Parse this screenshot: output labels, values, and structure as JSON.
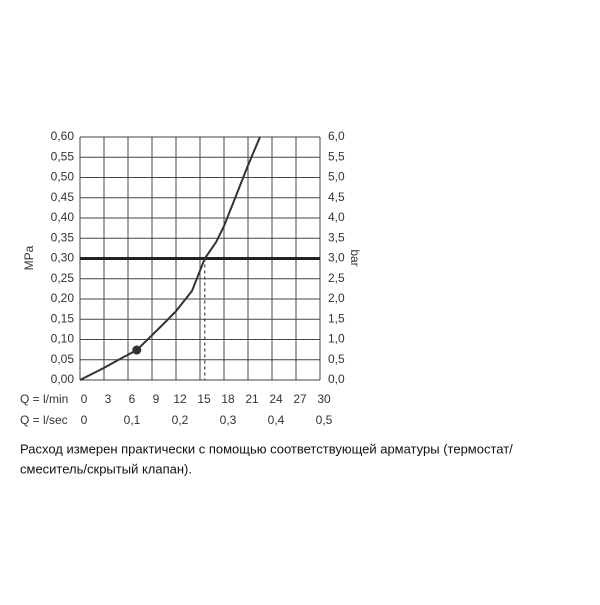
{
  "chart_data": {
    "type": "line",
    "y_label": "MPa",
    "y2_label": "bar",
    "x_label": "Q = l/min",
    "x2_label": "Q = l/sec",
    "x": [
      0,
      3,
      5,
      7.1,
      10,
      12,
      14,
      15.6,
      17,
      18,
      19,
      20,
      21,
      22.5
    ],
    "values": [
      0,
      0.03,
      0.052,
      0.074,
      0.13,
      0.17,
      0.22,
      0.3,
      0.34,
      0.38,
      0.43,
      0.48,
      0.53,
      0.6
    ],
    "color": "#333333",
    "marker": {
      "x": 7.1,
      "y": 0.074
    },
    "reference_y": 0.3,
    "reference_x": 15.6,
    "xlim": [
      0,
      30
    ],
    "xticks": [
      0,
      3,
      6,
      9,
      12,
      15,
      18,
      21,
      24,
      27,
      30
    ],
    "x2ticks": [
      {
        "value": 0,
        "label": "0"
      },
      {
        "value": 6,
        "label": "0,1"
      },
      {
        "value": 12,
        "label": "0,2"
      },
      {
        "value": 18,
        "label": "0,3"
      },
      {
        "value": 24,
        "label": "0,4"
      },
      {
        "value": 30,
        "label": "0,5"
      }
    ],
    "ylim": [
      0,
      0.6
    ],
    "yticks": [
      {
        "value": 0,
        "label": "0,00"
      },
      {
        "value": 0.05,
        "label": "0,05"
      },
      {
        "value": 0.1,
        "label": "0,10"
      },
      {
        "value": 0.15,
        "label": "0,15"
      },
      {
        "value": 0.2,
        "label": "0,20"
      },
      {
        "value": 0.25,
        "label": "0,25"
      },
      {
        "value": 0.3,
        "label": "0,30"
      },
      {
        "value": 0.35,
        "label": "0,35"
      },
      {
        "value": 0.4,
        "label": "0,40"
      },
      {
        "value": 0.45,
        "label": "0,45"
      },
      {
        "value": 0.5,
        "label": "0,50"
      },
      {
        "value": 0.55,
        "label": "0,55"
      },
      {
        "value": 0.6,
        "label": "0,60"
      }
    ],
    "y2lim": [
      0,
      6
    ],
    "y2ticks": [
      {
        "value": 0,
        "label": "0,0"
      },
      {
        "value": 0.5,
        "label": "0,5"
      },
      {
        "value": 1,
        "label": "1,0"
      },
      {
        "value": 1.5,
        "label": "1,5"
      },
      {
        "value": 2,
        "label": "2,0"
      },
      {
        "value": 2.5,
        "label": "2,5"
      },
      {
        "value": 3,
        "label": "3,0"
      },
      {
        "value": 3.5,
        "label": "3,5"
      },
      {
        "value": 4,
        "label": "4,0"
      },
      {
        "value": 4.5,
        "label": "4,5"
      },
      {
        "value": 5,
        "label": "5,0"
      },
      {
        "value": 5.5,
        "label": "5,5"
      },
      {
        "value": 6,
        "label": "6,0"
      }
    ],
    "grid": true,
    "caption_lines": [
      "Расход измерен практически с помощью соответствующей арматуры (термостат/",
      "смеситель/скрытый клапан)."
    ]
  }
}
